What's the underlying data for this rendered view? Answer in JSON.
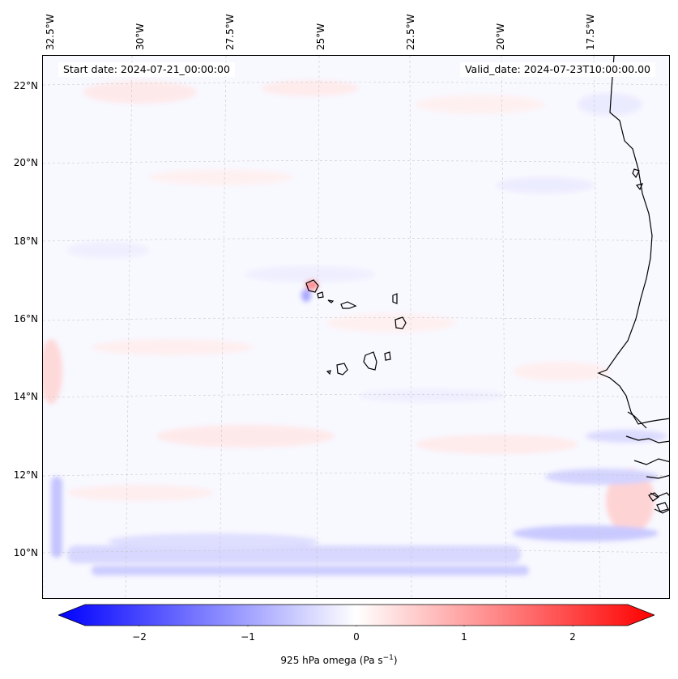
{
  "map": {
    "start_label": "Start date: 2024-07-21_00:00:00",
    "valid_label": "Valid_date: 2024-07-23T10:00:00.00",
    "lon_labels": [
      "32.5°W",
      "30°W",
      "27.5°W",
      "25°W",
      "22.5°W",
      "20°W",
      "17.5°W"
    ],
    "lat_labels": [
      "22°N",
      "20°N",
      "18°N",
      "16°N",
      "14°N",
      "12°N",
      "10°N"
    ],
    "colors": {
      "negative": "#0000ff",
      "neutral": "#ffffff",
      "positive": "#ff0000",
      "coast": "#000000"
    }
  },
  "colorbar": {
    "ticks": [
      "−2",
      "−1",
      "0",
      "1",
      "2"
    ],
    "min": -2.75,
    "max": 2.75,
    "label": "925 hPa omega (Pa s⁻¹)",
    "label_base": "925 hPa omega (Pa s",
    "label_exp": "−1",
    "label_end": ")"
  }
}
